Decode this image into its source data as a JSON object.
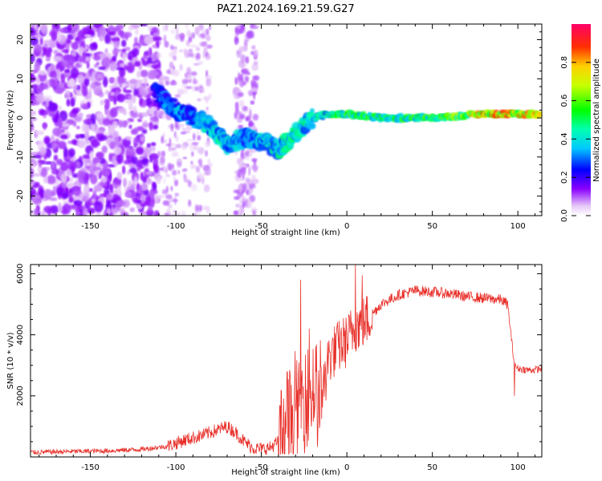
{
  "title": "PAZ1.2024.169.21.59.G27",
  "chart_data": [
    {
      "type": "heatmap",
      "xlabel": "Height of straight line (km)",
      "ylabel": "Frequency (Hz)",
      "xlim": [
        -185,
        114
      ],
      "ylim": [
        -25,
        24
      ],
      "xticks": [
        -150,
        -100,
        -50,
        0,
        50,
        100
      ],
      "yticks": [
        -20,
        -10,
        0,
        10,
        20
      ],
      "colorbar": {
        "label": "Normalized spectral amplitude",
        "range": [
          0.0,
          1.0
        ],
        "ticks": [
          "0.0",
          "0.2",
          "0.4",
          "0.6",
          "0.8"
        ],
        "colormap": "white-purple-blue-cyan-green-yellow-red-magenta"
      },
      "signal_trace": [
        {
          "x": -110,
          "freq": 6,
          "amp": 0.3
        },
        {
          "x": -100,
          "freq": 2,
          "amp": 0.4
        },
        {
          "x": -90,
          "freq": 0,
          "amp": 0.35
        },
        {
          "x": -80,
          "freq": -2,
          "amp": 0.45
        },
        {
          "x": -70,
          "freq": -7,
          "amp": 0.45
        },
        {
          "x": -60,
          "freq": -5,
          "amp": 0.35
        },
        {
          "x": -50,
          "freq": -6,
          "amp": 0.4
        },
        {
          "x": -40,
          "freq": -8,
          "amp": 0.5
        },
        {
          "x": -30,
          "freq": -4,
          "amp": 0.5
        },
        {
          "x": -20,
          "freq": 0,
          "amp": 0.45
        },
        {
          "x": -10,
          "freq": 1,
          "amp": 0.5
        },
        {
          "x": 0,
          "freq": 1,
          "amp": 0.6
        },
        {
          "x": 20,
          "freq": 0,
          "amp": 0.55
        },
        {
          "x": 50,
          "freq": 0,
          "amp": 0.6
        },
        {
          "x": 80,
          "freq": 1,
          "amp": 0.85
        },
        {
          "x": 100,
          "freq": 1,
          "amp": 0.9
        },
        {
          "x": 114,
          "freq": 1,
          "amp": 0.8
        }
      ]
    },
    {
      "type": "line",
      "xlabel": "Height of straight line (km)",
      "ylabel": "SNR (10 * v/v)",
      "xlim": [
        -185,
        114
      ],
      "ylim": [
        0,
        6300
      ],
      "xticks": [
        -150,
        -100,
        -50,
        0,
        50,
        100
      ],
      "yticks": [
        2000,
        4000,
        6000
      ],
      "series": [
        {
          "color": "#e8302a",
          "x": [
            -185,
            -160,
            -140,
            -120,
            -105,
            -95,
            -85,
            -80,
            -75,
            -70,
            -65,
            -60,
            -55,
            -50,
            -45,
            -40,
            -35,
            -30,
            -25,
            -20,
            -15,
            -10,
            -5,
            0,
            5,
            10,
            15,
            20,
            30,
            40,
            50,
            60,
            70,
            80,
            90,
            94,
            96,
            98,
            100,
            105,
            110,
            114
          ],
          "y": [
            150,
            180,
            200,
            250,
            350,
            550,
            700,
            800,
            900,
            1000,
            800,
            500,
            300,
            250,
            300,
            500,
            1500,
            2200,
            2600,
            2800,
            2600,
            3300,
            3600,
            3800,
            4300,
            4400,
            4700,
            5000,
            5300,
            5450,
            5400,
            5350,
            5250,
            5200,
            5150,
            5000,
            4000,
            3000,
            2900,
            2850,
            2850,
            2900
          ]
        }
      ],
      "spikes": [
        {
          "x": -27,
          "y": 5800
        },
        {
          "x": 5,
          "y": 6300
        },
        {
          "x": 9,
          "y": 5950
        },
        {
          "x": -35,
          "y": 2800
        },
        {
          "x": -22,
          "y": 4200
        },
        {
          "x": 98,
          "y": 2000
        }
      ]
    }
  ]
}
